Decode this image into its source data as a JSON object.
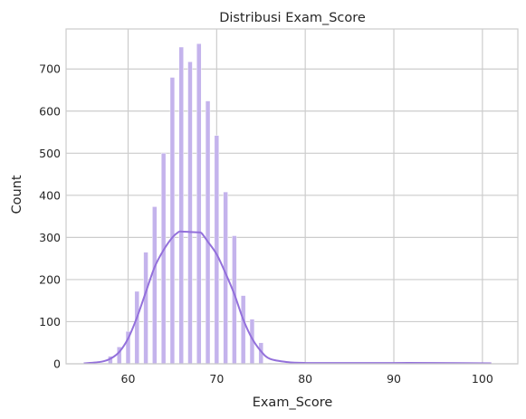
{
  "chart_data": {
    "type": "bar",
    "subtype": "histogram-with-kde",
    "title": "Distribusi Exam_Score",
    "xlabel": "Exam_Score",
    "ylabel": "Count",
    "xlim": [
      53,
      104
    ],
    "ylim": [
      0,
      795
    ],
    "xticks": [
      60,
      70,
      80,
      90,
      100
    ],
    "yticks": [
      0,
      100,
      200,
      300,
      400,
      500,
      600,
      700
    ],
    "grid": true,
    "bar_color": "#c4b3ec",
    "kde_color": "#9370db",
    "bins": [
      {
        "x": 58.0,
        "count": 18
      },
      {
        "x": 59.0,
        "count": 40
      },
      {
        "x": 60.0,
        "count": 77
      },
      {
        "x": 61.0,
        "count": 172
      },
      {
        "x": 62.0,
        "count": 265
      },
      {
        "x": 63.0,
        "count": 373
      },
      {
        "x": 64.0,
        "count": 500
      },
      {
        "x": 65.0,
        "count": 680
      },
      {
        "x": 66.0,
        "count": 752
      },
      {
        "x": 67.0,
        "count": 717
      },
      {
        "x": 68.0,
        "count": 760
      },
      {
        "x": 69.0,
        "count": 624
      },
      {
        "x": 70.0,
        "count": 542
      },
      {
        "x": 71.0,
        "count": 408
      },
      {
        "x": 72.0,
        "count": 304
      },
      {
        "x": 73.0,
        "count": 162
      },
      {
        "x": 74.0,
        "count": 106
      },
      {
        "x": 75.0,
        "count": 50
      },
      {
        "x": 76.0,
        "count": 2
      },
      {
        "x": 77.0,
        "count": 1
      },
      {
        "x": 80.0,
        "count": 1
      },
      {
        "x": 82.0,
        "count": 2
      },
      {
        "x": 86.0,
        "count": 2
      },
      {
        "x": 88.0,
        "count": 1
      },
      {
        "x": 91.0,
        "count": 1
      },
      {
        "x": 94.0,
        "count": 2
      },
      {
        "x": 97.0,
        "count": 1
      },
      {
        "x": 100.0,
        "count": 2
      }
    ],
    "kde": {
      "x": [
        55,
        57,
        58,
        59,
        60,
        61,
        62,
        63,
        64,
        65,
        65.7,
        66,
        67,
        68,
        68.3,
        69,
        70,
        71,
        72,
        73,
        74,
        75,
        76,
        78,
        80,
        85,
        90,
        95,
        101
      ],
      "y": [
        1,
        5,
        12,
        28,
        60,
        110,
        170,
        230,
        270,
        300,
        313,
        314,
        313,
        312,
        310,
        290,
        260,
        215,
        165,
        105,
        60,
        30,
        12,
        4,
        2,
        2,
        2,
        2,
        1
      ]
    }
  }
}
